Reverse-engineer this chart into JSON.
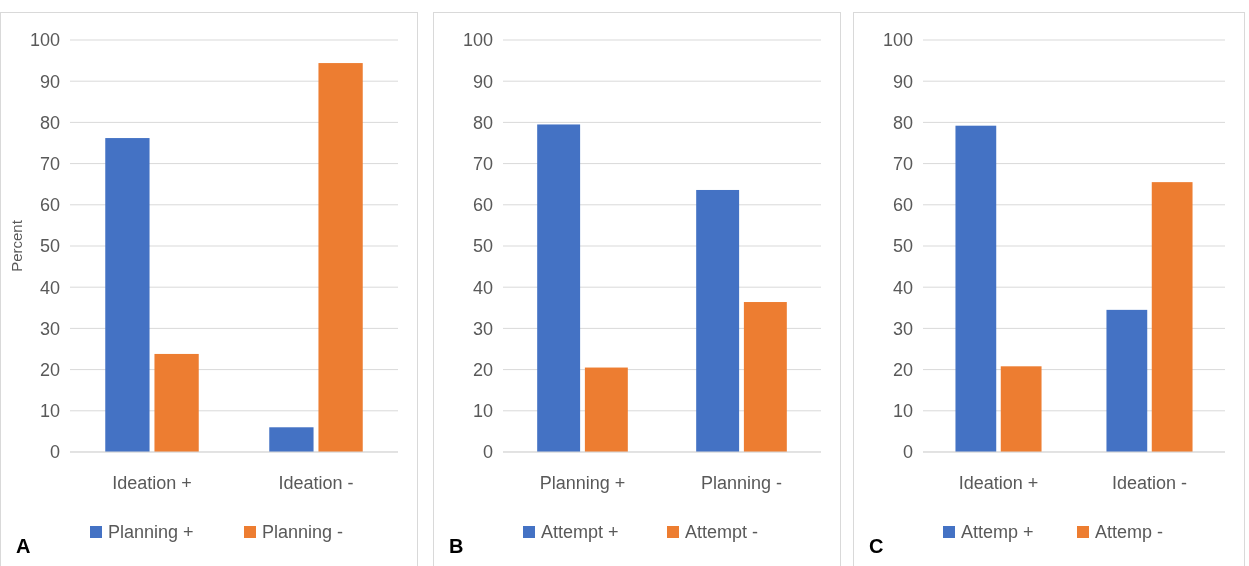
{
  "chart_data": [
    {
      "type": "bar",
      "categories": [
        "Ideation +",
        "Ideation -"
      ],
      "ylabel": "Percent",
      "ylim": [
        0,
        100
      ],
      "yticks": [
        0,
        10,
        20,
        30,
        40,
        50,
        60,
        70,
        80,
        90,
        100
      ],
      "grid": "y",
      "legend": "bottom",
      "annotations": [
        "A"
      ],
      "series": [
        {
          "name": "Planning +",
          "color": "#4472c4",
          "values": [
            76.2,
            6
          ]
        },
        {
          "name": "Planning -",
          "color": "#ed7d31",
          "values": [
            23.8,
            94.4
          ]
        }
      ]
    },
    {
      "type": "bar",
      "categories": [
        "Planning +",
        "Planning -"
      ],
      "ylim": [
        0,
        100
      ],
      "yticks": [
        0,
        10,
        20,
        30,
        40,
        50,
        60,
        70,
        80,
        90,
        100
      ],
      "grid": "y",
      "legend": "bottom",
      "annotations": [
        "B"
      ],
      "series": [
        {
          "name": "Attempt +",
          "color": "#4472c4",
          "values": [
            79.5,
            63.6
          ]
        },
        {
          "name": "Attempt -",
          "color": "#ed7d31",
          "values": [
            20.5,
            36.4
          ]
        }
      ]
    },
    {
      "type": "bar",
      "categories": [
        "Ideation +",
        "Ideation -"
      ],
      "ylim": [
        0,
        100
      ],
      "yticks": [
        0,
        10,
        20,
        30,
        40,
        50,
        60,
        70,
        80,
        90,
        100
      ],
      "grid": "y",
      "legend": "bottom",
      "annotations": [
        "C"
      ],
      "series": [
        {
          "name": "Attemp +",
          "color": "#4472c4",
          "values": [
            79.2,
            34.5
          ]
        },
        {
          "name": "Attemp -",
          "color": "#ed7d31",
          "values": [
            20.8,
            65.5
          ]
        }
      ]
    }
  ]
}
